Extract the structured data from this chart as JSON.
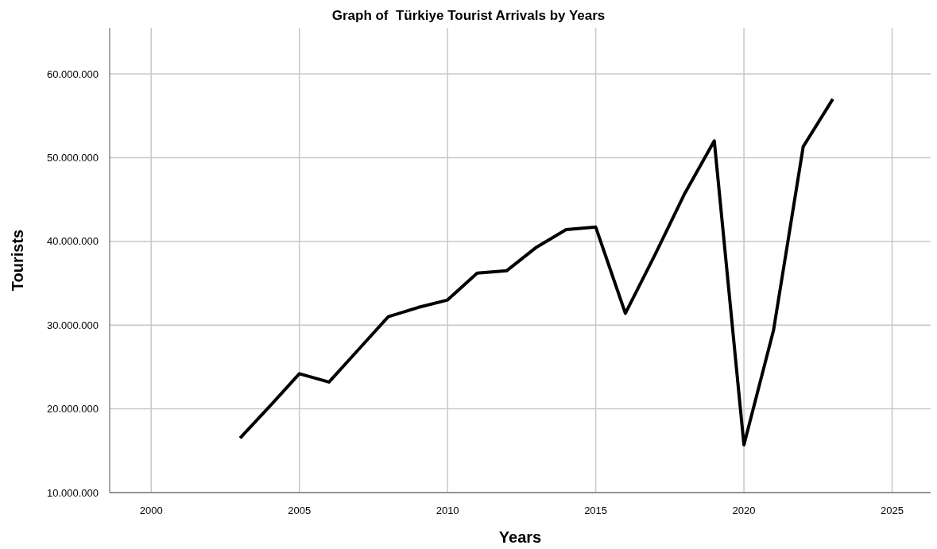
{
  "chart_data": {
    "type": "line",
    "title": "Graph of  Türkiye Tourist Arrivals by Years",
    "xlabel": "Years",
    "ylabel": "Tourists",
    "x": [
      2003,
      2004,
      2005,
      2006,
      2007,
      2008,
      2009,
      2010,
      2011,
      2012,
      2013,
      2014,
      2015,
      2016,
      2017,
      2018,
      2019,
      2020,
      2021,
      2022,
      2023
    ],
    "series": [
      {
        "color": "#000000",
        "values": [
          16500000,
          20300000,
          24200000,
          23200000,
          27100000,
          31000000,
          32100000,
          33000000,
          36200000,
          36500000,
          39300000,
          41400000,
          41700000,
          31400000,
          38400000,
          45700000,
          52000000,
          15700000,
          29400000,
          51300000,
          57000000
        ]
      }
    ],
    "xlim": [
      1998.6,
      2026.3
    ],
    "xticks": [
      2000,
      2005,
      2010,
      2015,
      2020,
      2025
    ],
    "ylim": [
      10000000,
      65500000
    ],
    "yticks": [
      {
        "value": 10000000,
        "label": "10.000.000"
      },
      {
        "value": 20000000,
        "label": "20.000.000"
      },
      {
        "value": 30000000,
        "label": "30.000.000"
      },
      {
        "value": 40000000,
        "label": "40.000.000"
      },
      {
        "value": 50000000,
        "label": "50.000.000"
      },
      {
        "value": 60000000,
        "label": "60.000.000"
      }
    ],
    "grid": true,
    "marker": "none",
    "line_style": "solid"
  }
}
